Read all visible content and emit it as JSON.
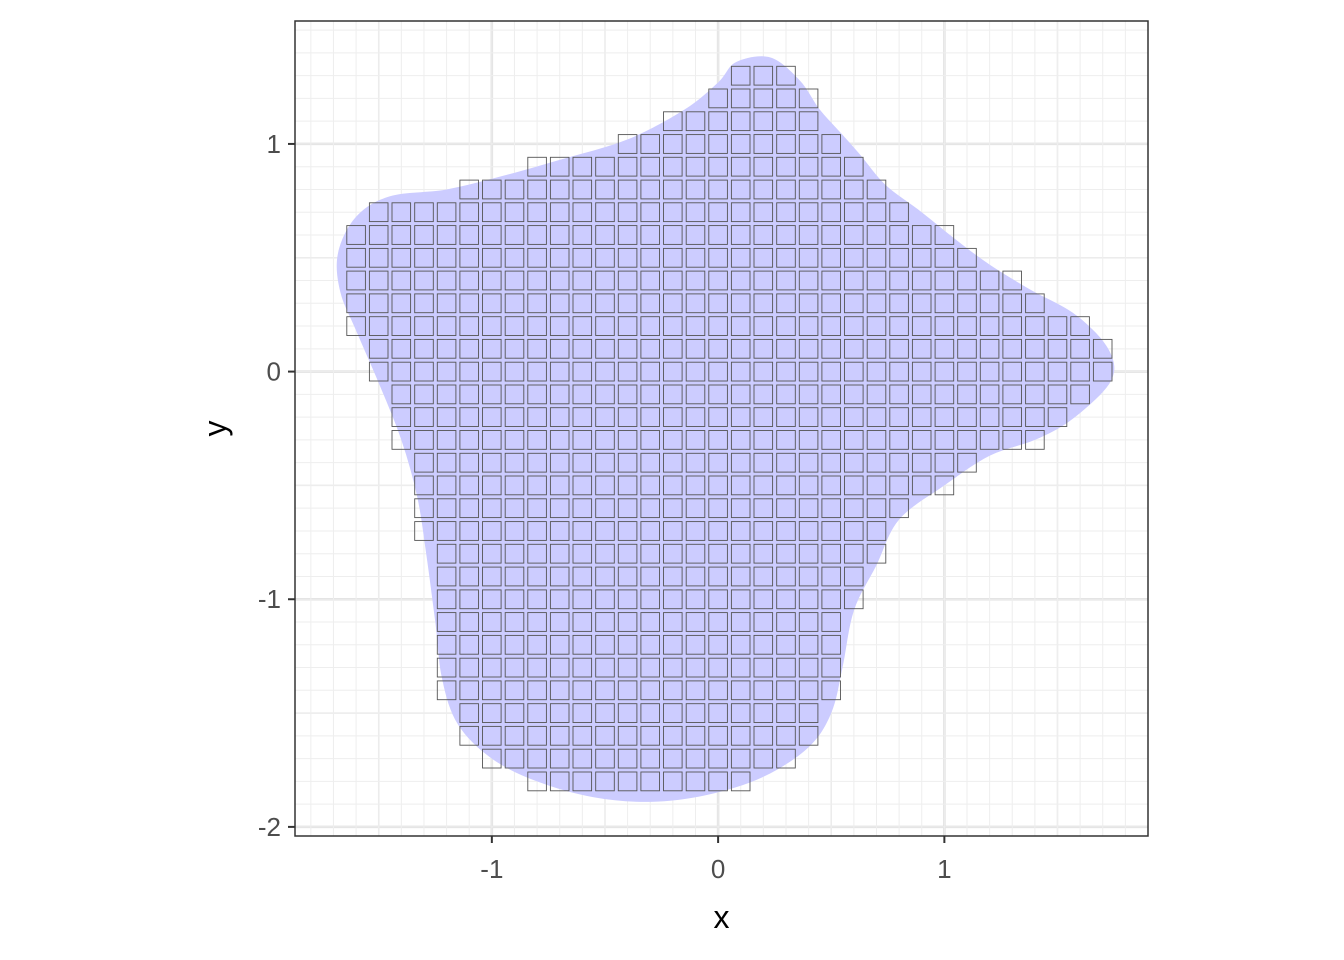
{
  "chart_data": {
    "type": "polygon-with-tile-grid",
    "title": "",
    "xlabel": "x",
    "ylabel": "y",
    "xlim": [
      -1.87,
      1.9
    ],
    "ylim": [
      -2.04,
      1.54
    ],
    "x_ticks": [
      -1,
      0,
      1
    ],
    "x_tick_labels": [
      "-1",
      "0",
      "1"
    ],
    "y_ticks": [
      -2,
      -1,
      0,
      1
    ],
    "y_tick_labels": [
      "-2",
      "-1",
      "0",
      "1"
    ],
    "minor_x": [
      -1.5,
      -0.5,
      0.5,
      1.5
    ],
    "minor_y": [
      -1.5,
      -0.5,
      0.5
    ],
    "grid_step": 0.1,
    "grid": true,
    "theme": "bw",
    "shape_fill": "#ccccff",
    "tile_stroke": "#555555",
    "shape_outline": [
      [
        0.23,
        1.38
      ],
      [
        0.36,
        1.28
      ],
      [
        0.45,
        1.15
      ],
      [
        0.55,
        1.04
      ],
      [
        0.63,
        0.95
      ],
      [
        0.74,
        0.82
      ],
      [
        0.9,
        0.7
      ],
      [
        1.05,
        0.58
      ],
      [
        1.2,
        0.47
      ],
      [
        1.38,
        0.36
      ],
      [
        1.55,
        0.27
      ],
      [
        1.66,
        0.18
      ],
      [
        1.73,
        0.09
      ],
      [
        1.75,
        0.0
      ],
      [
        1.7,
        -0.09
      ],
      [
        1.55,
        -0.22
      ],
      [
        1.4,
        -0.3
      ],
      [
        1.2,
        -0.37
      ],
      [
        1.0,
        -0.5
      ],
      [
        0.8,
        -0.65
      ],
      [
        0.7,
        -0.85
      ],
      [
        0.6,
        -1.05
      ],
      [
        0.55,
        -1.3
      ],
      [
        0.5,
        -1.5
      ],
      [
        0.4,
        -1.65
      ],
      [
        0.2,
        -1.78
      ],
      [
        -0.05,
        -1.86
      ],
      [
        -0.3,
        -1.89
      ],
      [
        -0.55,
        -1.87
      ],
      [
        -0.8,
        -1.8
      ],
      [
        -1.0,
        -1.7
      ],
      [
        -1.15,
        -1.55
      ],
      [
        -1.22,
        -1.35
      ],
      [
        -1.25,
        -1.1
      ],
      [
        -1.29,
        -0.8
      ],
      [
        -1.33,
        -0.55
      ],
      [
        -1.4,
        -0.3
      ],
      [
        -1.5,
        -0.05
      ],
      [
        -1.6,
        0.18
      ],
      [
        -1.67,
        0.35
      ],
      [
        -1.68,
        0.52
      ],
      [
        -1.6,
        0.68
      ],
      [
        -1.45,
        0.77
      ],
      [
        -1.2,
        0.8
      ],
      [
        -0.95,
        0.86
      ],
      [
        -0.7,
        0.93
      ],
      [
        -0.4,
        1.02
      ],
      [
        -0.15,
        1.15
      ],
      [
        0.0,
        1.27
      ],
      [
        0.08,
        1.36
      ]
    ]
  }
}
